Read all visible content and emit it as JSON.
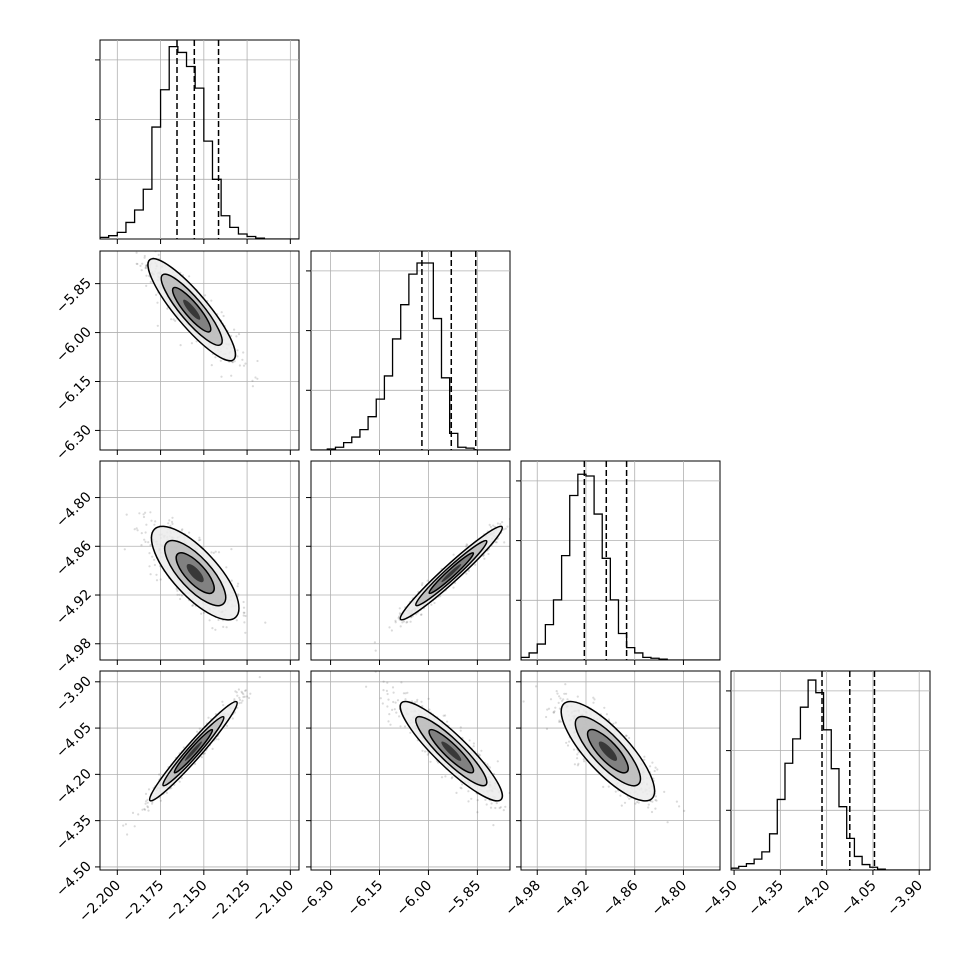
{
  "chart_data": {
    "type": "corner",
    "colors": {
      "line": "#000000",
      "grid": "#b0b0b0",
      "scatter": "#555555"
    },
    "grid": true,
    "parameters": [
      {
        "range": [
          -2.21,
          -2.095
        ],
        "ticks": [
          -2.2,
          -2.175,
          -2.15,
          -2.125,
          -2.1
        ],
        "tick_labels": [
          "−2.200",
          "−2.175",
          "−2.150",
          "−2.125",
          "−2.100"
        ],
        "quantiles": [
          -2.1655,
          -2.1555,
          -2.1415
        ],
        "hist": {
          "edges_start": -2.21,
          "bin_width": 0.005,
          "counts": [
            2,
            4,
            8,
            20,
            35,
            60,
            135,
            180,
            232,
            225,
            208,
            182,
            118,
            72,
            28,
            14,
            6,
            3,
            1,
            0,
            0,
            0,
            0
          ]
        },
        "hist_ymax": 240
      },
      {
        "range": [
          -6.36,
          -5.75
        ],
        "ticks": [
          -6.3,
          -6.15,
          -6.0,
          -5.85
        ],
        "tick_labels": [
          "−6.30",
          "−6.15",
          "−6.00",
          "−5.85"
        ],
        "quantiles": [
          -6.02,
          -5.93,
          -5.855
        ],
        "hist": {
          "edges_start": -6.36,
          "bin_width": 0.025,
          "counts": [
            0,
            0,
            1,
            3,
            8,
            14,
            22,
            36,
            55,
            80,
            120,
            157,
            190,
            202,
            202,
            142,
            78,
            18,
            3,
            2,
            0,
            0,
            0,
            0,
            0
          ]
        },
        "hist_ymax": 215
      },
      {
        "range": [
          -5.0,
          -4.755
        ],
        "ticks": [
          -4.98,
          -4.92,
          -4.86,
          -4.8
        ],
        "tick_labels": [
          "−4.98",
          "−4.92",
          "−4.86",
          "−4.80"
        ],
        "quantiles": [
          -4.922,
          -4.895,
          -4.87
        ],
        "hist": {
          "edges_start": -5.0,
          "bin_width": 0.01,
          "counts": [
            3,
            8,
            18,
            40,
            68,
            118,
            186,
            210,
            208,
            165,
            115,
            68,
            30,
            14,
            8,
            3,
            2,
            1,
            0,
            0,
            0,
            0,
            0,
            0,
            0
          ]
        },
        "hist_ymax": 225
      },
      {
        "range": [
          -4.51,
          -3.865
        ],
        "ticks": [
          -4.5,
          -4.35,
          -4.2,
          -4.05,
          -3.9
        ],
        "tick_labels": [
          "−4.50",
          "−4.35",
          "−4.20",
          "−4.05",
          "−3.90"
        ],
        "quantiles": [
          -4.215,
          -4.125,
          -4.045
        ],
        "hist": {
          "edges_start": -4.51,
          "bin_width": 0.025,
          "counts": [
            2,
            4,
            7,
            12,
            20,
            40,
            78,
            118,
            145,
            180,
            210,
            196,
            155,
            112,
            70,
            35,
            15,
            6,
            3,
            1,
            0,
            0,
            0,
            0,
            0,
            0
          ]
        },
        "hist_ymax": 220
      }
    ],
    "pairs": [
      {
        "x": 0,
        "y": 1,
        "center": [
          -2.157,
          -5.93
        ],
        "sigma": [
          0.011,
          0.068
        ],
        "rho": -0.88
      },
      {
        "x": 0,
        "y": 2,
        "center": [
          -2.155,
          -4.893
        ],
        "sigma": [
          0.011,
          0.025
        ],
        "rho": -0.75
      },
      {
        "x": 1,
        "y": 2,
        "center": [
          -5.93,
          -4.893
        ],
        "sigma": [
          0.068,
          0.025
        ],
        "rho": 0.97
      },
      {
        "x": 0,
        "y": 3,
        "center": [
          -2.156,
          -4.125
        ],
        "sigma": [
          0.011,
          0.07
        ],
        "rho": 0.97
      },
      {
        "x": 1,
        "y": 3,
        "center": [
          -5.93,
          -4.125
        ],
        "sigma": [
          0.068,
          0.07
        ],
        "rho": -0.9
      },
      {
        "x": 2,
        "y": 3,
        "center": [
          -4.893,
          -4.125
        ],
        "sigma": [
          0.025,
          0.07
        ],
        "rho": -0.8
      }
    ]
  }
}
